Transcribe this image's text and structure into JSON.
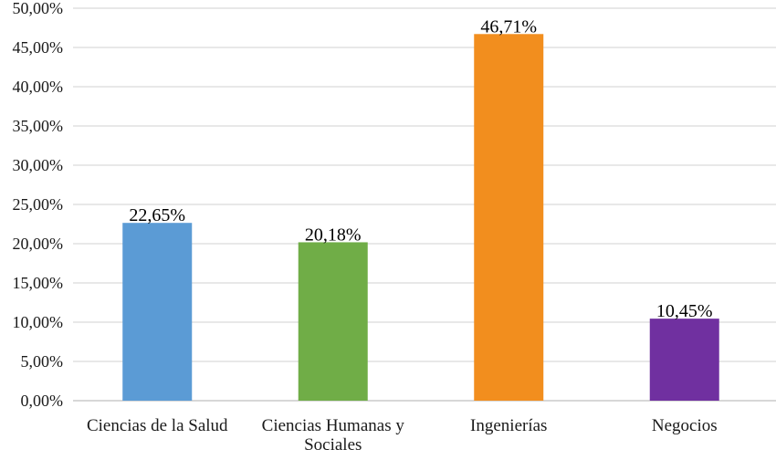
{
  "chart_data": {
    "type": "bar",
    "categories": [
      [
        "Ciencias de la Salud"
      ],
      [
        "Ciencias Humanas y",
        "Sociales"
      ],
      [
        "Ingenierías"
      ],
      [
        "Negocios"
      ]
    ],
    "values": [
      22.65,
      20.18,
      46.71,
      10.45
    ],
    "data_labels": [
      "22,65%",
      "20,18%",
      "46,71%",
      "10,45%"
    ],
    "bar_colors": [
      "#5b9bd5",
      "#70ad47",
      "#f28e1e",
      "#7030a0"
    ],
    "y_ticks": [
      0,
      5,
      10,
      15,
      20,
      25,
      30,
      35,
      40,
      45,
      50
    ],
    "y_tick_labels": [
      "0,00%",
      "5,00%",
      "10,00%",
      "15,00%",
      "20,00%",
      "25,00%",
      "30,00%",
      "35,00%",
      "40,00%",
      "45,00%",
      "50,00%"
    ],
    "ylim": [
      0,
      50
    ],
    "grid": true,
    "legend": "none",
    "colors": {
      "grid": "#d9d9d9",
      "axis": "#bfbfbf"
    }
  }
}
